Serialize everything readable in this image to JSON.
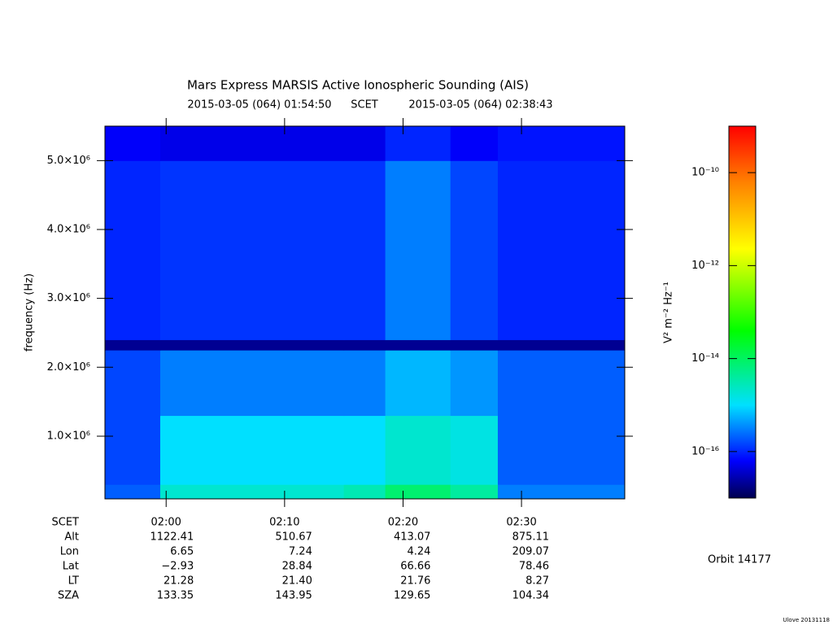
{
  "chart_data": {
    "type": "heatmap",
    "title": "Mars Express MARSIS Active Ionospheric Sounding (AIS)",
    "start_time": "2015-03-05 (064) 01:54:50",
    "time_label": "SCET",
    "end_time": "2015-03-05 (064) 02:38:43",
    "y_label": "frequency (Hz)",
    "xlim": [
      "01:54:50",
      "02:38:43"
    ],
    "xticks": [
      "02:00",
      "02:10",
      "02:20",
      "02:30"
    ],
    "ylim": [
      90000,
      5500000
    ],
    "yticks": [
      {
        "value": 1000000,
        "label": "1.0×10⁶"
      },
      {
        "value": 2000000,
        "label": "2.0×10⁶"
      },
      {
        "value": 3000000,
        "label": "3.0×10⁶"
      },
      {
        "value": 4000000,
        "label": "4.0×10⁶"
      },
      {
        "value": 5000000,
        "label": "5.0×10⁶"
      }
    ],
    "x_bins": [
      "01:54:50",
      "01:59:30",
      "02:15:00",
      "02:18:30",
      "02:24:00",
      "02:28:00",
      "02:38:43"
    ],
    "y_bins": [
      90000,
      300000,
      1300000,
      2250000,
      2400000,
      5000000,
      5500000
    ],
    "z": [
      [
        2e-16,
        2e-15,
        3e-15,
        8e-15,
        4e-15,
        3e-16
      ],
      [
        1.5e-16,
        1e-15,
        1e-15,
        2e-15,
        1.5e-15,
        2e-16
      ],
      [
        1.5e-16,
        3e-16,
        3e-16,
        6e-16,
        4e-16,
        2e-16
      ],
      [
        2e-17,
        2e-17,
        2e-17,
        2e-17,
        2e-17,
        2e-17
      ],
      [
        1e-16,
        1.2e-16,
        1.2e-16,
        3e-16,
        1.5e-16,
        1e-16
      ],
      [
        6e-17,
        5e-17,
        5e-17,
        1e-16,
        6e-17,
        8e-17
      ]
    ],
    "colorbar": {
      "label": "V² m⁻² Hz⁻¹",
      "log_scale": true,
      "zlim": [
        1e-17,
        1e-09
      ],
      "ticks": [
        {
          "value": 1e-10,
          "label": "10⁻¹⁰"
        },
        {
          "value": 1e-12,
          "label": "10⁻¹²"
        },
        {
          "value": 1e-14,
          "label": "10⁻¹⁴"
        },
        {
          "value": 1e-16,
          "label": "10⁻¹⁶"
        }
      ]
    },
    "ephemeris": {
      "header": "SCET",
      "labels": [
        "Alt",
        "Lon",
        "Lat",
        "LT",
        "SZA"
      ],
      "rows": [
        [
          "1122.41",
          "510.67",
          "413.07",
          "875.11"
        ],
        [
          "6.65",
          "7.24",
          "4.24",
          "209.07"
        ],
        [
          "−2.93",
          "28.84",
          "66.66",
          "78.46"
        ],
        [
          "21.28",
          "21.40",
          "21.76",
          "8.27"
        ],
        [
          "133.35",
          "143.95",
          "129.65",
          "104.34"
        ]
      ]
    },
    "orbit": "Orbit 14177",
    "footer": "Ulove 20131118"
  }
}
